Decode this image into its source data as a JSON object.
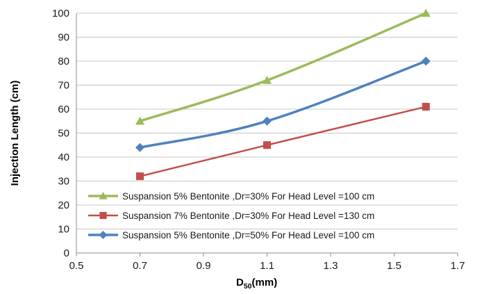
{
  "chart_data": {
    "type": "line",
    "title": "",
    "xlabel_main": "D",
    "xlabel_sub": "50",
    "xlabel_unit": "(mm)",
    "ylabel": "Injection Length (cm)",
    "xlim": [
      0.5,
      1.7
    ],
    "ylim": [
      0,
      100
    ],
    "x_ticks": [
      "0.5",
      "0.7",
      "0.9",
      "1.1",
      "1.3",
      "1.5",
      "1.7"
    ],
    "y_ticks": [
      "0",
      "10",
      "20",
      "30",
      "40",
      "50",
      "60",
      "70",
      "80",
      "90",
      "100"
    ],
    "grid": "horizontal",
    "legend_position": "bottom",
    "series": [
      {
        "name": "Suspansion 5% Bentonite ,Dr=30% For Head Level =100 cm",
        "marker": "triangle",
        "color": "#9bbb59",
        "x": [
          0.7,
          1.1,
          1.6
        ],
        "y": [
          55,
          72,
          100
        ]
      },
      {
        "name": "Suspansion 7% Bentonite ,Dr=30% For Head Level =130 cm",
        "marker": "square",
        "color": "#c0504d",
        "x": [
          0.7,
          1.1,
          1.6
        ],
        "y": [
          32,
          45,
          61
        ]
      },
      {
        "name": "Suspansion 5% Bentonite ,Dr=50% For Head Level =100 cm",
        "marker": "diamond",
        "color": "#4f81bd",
        "x": [
          0.7,
          1.1,
          1.6
        ],
        "y": [
          44,
          55,
          80
        ]
      }
    ]
  }
}
